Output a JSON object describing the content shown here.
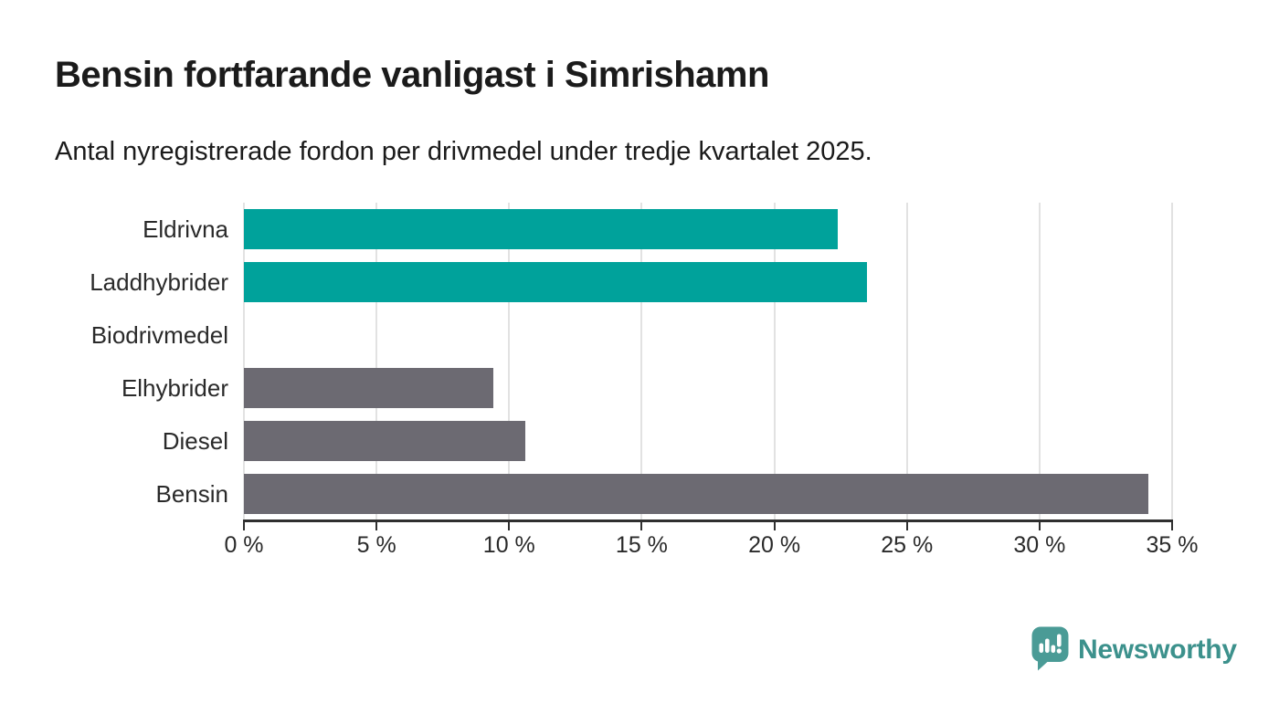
{
  "header": {
    "title": "Bensin fortfarande vanligast i Simrishamn",
    "subtitle": "Antal nyregistrerade fordon per drivmedel under tredje kvartalet 2025."
  },
  "footer": {
    "brand": "Newsworthy"
  },
  "colors": {
    "teal": "#00a29b",
    "gray": "#6c6a72",
    "gridline": "#e2e2e2",
    "axis": "#2f2f2f",
    "text": "#1b1b1b",
    "label": "#2a2a2a",
    "logo": "#4a9b96",
    "logo_text": "#3c918c"
  },
  "chart_data": {
    "type": "bar",
    "orientation": "horizontal",
    "title": "Bensin fortfarande vanligast i Simrishamn",
    "subtitle": "Antal nyregistrerade fordon per drivmedel under tredje kvartalet 2025.",
    "categories": [
      "Eldrivna",
      "Laddhybrider",
      "Biodrivmedel",
      "Elhybrider",
      "Diesel",
      "Bensin"
    ],
    "values": [
      22.4,
      23.5,
      0,
      9.4,
      10.6,
      34.1
    ],
    "unit": "%",
    "bar_colors": [
      "#00a29b",
      "#00a29b",
      "#6c6a72",
      "#6c6a72",
      "#6c6a72",
      "#6c6a72"
    ],
    "xlabel": "",
    "ylabel": "",
    "xlim": [
      0,
      35
    ],
    "x_ticks": [
      "0 %",
      "5 %",
      "10 %",
      "15 %",
      "20 %",
      "25 %",
      "30 %",
      "35 %"
    ],
    "x_tick_values": [
      0,
      5,
      10,
      15,
      20,
      25,
      30,
      35
    ],
    "grid": "vertical",
    "legend": "none"
  }
}
